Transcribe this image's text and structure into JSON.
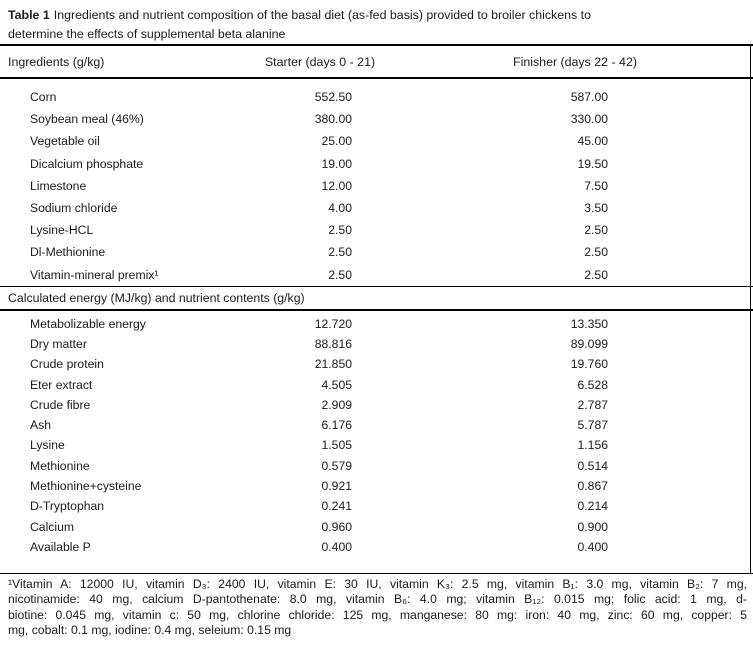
{
  "title": {
    "label": "Table 1",
    "line1_rest": "Ingredients and nutrient composition of the basal diet (as-fed basis) provided to broiler chickens to",
    "line2": "determine the effects of supplemental beta alanine"
  },
  "table": {
    "columns": [
      "Ingredients (g/kg)",
      "Starter (days 0 - 21)",
      "Finisher (days 22 - 42)"
    ],
    "ingredients": [
      {
        "name": "Corn",
        "starter": "552.50",
        "finisher": "587.00"
      },
      {
        "name": "Soybean meal (46%)",
        "starter": "380.00",
        "finisher": "330.00"
      },
      {
        "name": "Vegetable oil",
        "starter": "25.00",
        "finisher": "45.00"
      },
      {
        "name": "Dicalcium phosphate",
        "starter": "19.00",
        "finisher": "19.50"
      },
      {
        "name": "Limestone",
        "starter": "12.00",
        "finisher": "7.50"
      },
      {
        "name": "Sodium chloride",
        "starter": "4.00",
        "finisher": "3.50"
      },
      {
        "name": "Lysine-HCL",
        "starter": "2.50",
        "finisher": "2.50"
      },
      {
        "name": "Dl-Methionine",
        "starter": "2.50",
        "finisher": "2.50"
      },
      {
        "name": "Vitamin-mineral premix¹",
        "starter": "2.50",
        "finisher": "2.50"
      }
    ],
    "section2_header": "Calculated energy (MJ/kg) and nutrient contents (g/kg)",
    "nutrients": [
      {
        "name": "Metabolizable energy",
        "starter": "12.720",
        "finisher": "13.350"
      },
      {
        "name": "Dry matter",
        "starter": "88.816",
        "finisher": "89.099"
      },
      {
        "name": "Crude protein",
        "starter": "21.850",
        "finisher": "19.760"
      },
      {
        "name": "Eter extract",
        "starter": "4.505",
        "finisher": "6.528"
      },
      {
        "name": "Crude fibre",
        "starter": "2.909",
        "finisher": "2.787"
      },
      {
        "name": "Ash",
        "starter": "6.176",
        "finisher": "5.787"
      },
      {
        "name": "Lysine",
        "starter": "1.505",
        "finisher": "1.156"
      },
      {
        "name": "Methionine",
        "starter": "0.579",
        "finisher": "0.514"
      },
      {
        "name": "Methionine+cysteine",
        "starter": "0.921",
        "finisher": "0.867"
      },
      {
        "name": "D-Tryptophan",
        "starter": "0.241",
        "finisher": "0.214"
      },
      {
        "name": "Calcium",
        "starter": "0.960",
        "finisher": "0.900"
      },
      {
        "name": "Available P",
        "starter": "0.400",
        "finisher": "0.400"
      }
    ]
  },
  "footnote": {
    "lines": [
      "¹Vitamin A: 12000 IU, vitamin D₃: 2400 IU, vitamin E: 30 IU, vitamin K₃: 2.5 mg, vitamin B₁: 3.0 mg, vitamin B₂: 7 mg,",
      "nicotinamide: 40 mg, calcium D-pantothenate: 8.0 mg, vitamin B₆: 4.0 mg; vitamin B₁₂: 0.015 mg; folic acid: 1 mg, d-",
      "biotine: 0.045 mg, vitamin c: 50 mg, chlorine chloride: 125 mg, manganese: 80 mg: iron: 40 mg, zinc: 60 mg, copper: 5",
      "mg, cobalt: 0.1 mg, iodine: 0.4 mg, seleium: 0.15 mg"
    ]
  }
}
